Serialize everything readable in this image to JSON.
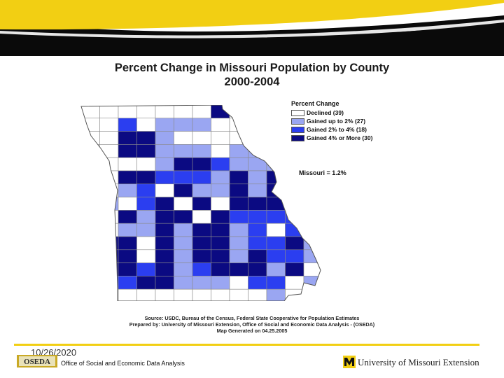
{
  "title_line1": "Percent Change in Missouri Population by County",
  "title_line2": "2000-2004",
  "legend": {
    "title": "Percent Change",
    "items": [
      {
        "label": "Declined (39)",
        "color": "#ffffff"
      },
      {
        "label": "Gained up to 2% (27)",
        "color": "#9aa6f2"
      },
      {
        "label": "Gained 2% to 4% (18)",
        "color": "#2b3ef0"
      },
      {
        "label": "Gained 4% or More (30)",
        "color": "#0b0a82"
      }
    ]
  },
  "missouri_stat": "Missouri = 1.2%",
  "source": {
    "line1": "Source:  USDC, Bureau of the Census, Federal State Cooperative for Population Estimates",
    "line2": "Prepared by: University of Missouri Extension, Office of Social and Economic Data Analysis - (OSEDA)",
    "line3": "Map Generated on 04.25.2005"
  },
  "footer": {
    "date": "10/26/2020",
    "office": "Office of Social and Economic Data Analysis",
    "oseda_logo": "OSEDA",
    "university": "University of Missouri Extension"
  },
  "colors": {
    "banner_yellow": "#f2cf13",
    "banner_black": "#0a0a0a",
    "map_border": "#888888"
  }
}
